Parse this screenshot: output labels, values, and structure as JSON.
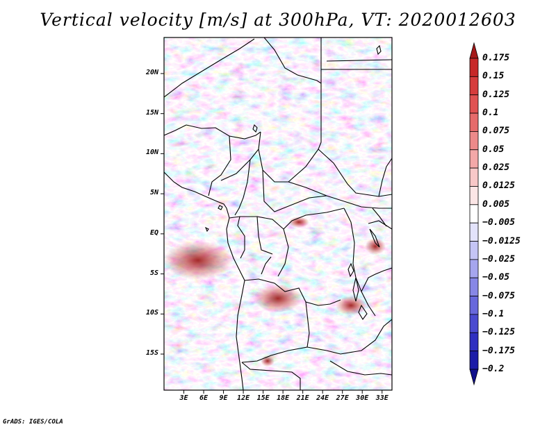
{
  "title": "Vertical velocity [m/s] at 300hPa, VT: 2020012603",
  "variable": "Vertical velocity",
  "units": "m/s",
  "level": "300hPa",
  "valid_time": "2020012603",
  "map": {
    "lon_range": [
      0,
      34.5
    ],
    "lat_range": [
      -19.5,
      24.5
    ],
    "lat_ticks": [
      {
        "value": 20,
        "label": "20N"
      },
      {
        "value": 15,
        "label": "15N"
      },
      {
        "value": 10,
        "label": "10N"
      },
      {
        "value": 5,
        "label": "5N"
      },
      {
        "value": 0,
        "label": "EQ"
      },
      {
        "value": -5,
        "label": "5S"
      },
      {
        "value": -10,
        "label": "10S"
      },
      {
        "value": -15,
        "label": "15S"
      }
    ],
    "lon_ticks": [
      {
        "value": 3,
        "label": "3E"
      },
      {
        "value": 6,
        "label": "6E"
      },
      {
        "value": 9,
        "label": "9E"
      },
      {
        "value": 12,
        "label": "12E"
      },
      {
        "value": 15,
        "label": "15E"
      },
      {
        "value": 18,
        "label": "18E"
      },
      {
        "value": 21,
        "label": "21E"
      },
      {
        "value": 24,
        "label": "24E"
      },
      {
        "value": 27,
        "label": "27E"
      },
      {
        "value": 30,
        "label": "30E"
      },
      {
        "value": 33,
        "label": "33E"
      }
    ]
  },
  "colorbar": {
    "labels": [
      "0.175",
      "0.15",
      "0.125",
      "0.1",
      "0.075",
      "0.05",
      "0.025",
      "0.0125",
      "0.005",
      "−0.005",
      "−0.0125",
      "−0.025",
      "−0.05",
      "−0.075",
      "−0.1",
      "−0.125",
      "−0.175",
      "−0.2"
    ],
    "colors": [
      "#a51919",
      "#c72828",
      "#d63c3c",
      "#e05252",
      "#e66b6b",
      "#ed8a8a",
      "#f3a8a8",
      "#f8c8c8",
      "#fce6e6",
      "#ffffff",
      "#e3e3fb",
      "#c5c5f5",
      "#a6a6ee",
      "#8787e6",
      "#6868dc",
      "#4a4ad0",
      "#3030c0",
      "#1c1ca8",
      "#10108c"
    ]
  },
  "footer": "GrADS: IGES/COLA"
}
